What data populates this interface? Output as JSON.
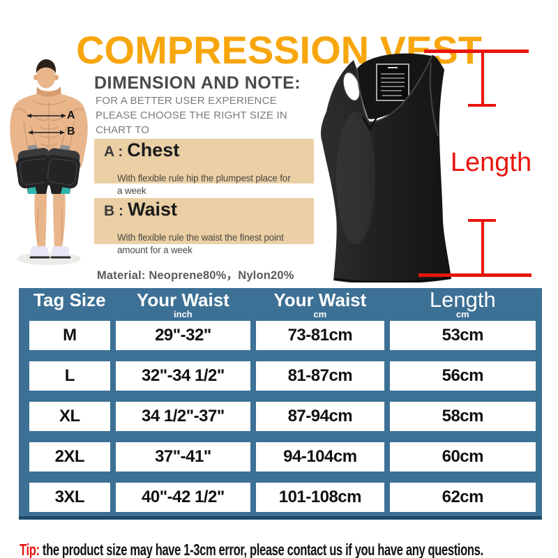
{
  "colors": {
    "accent-orange": "#f7a60d",
    "accent-red": "#e8150e",
    "tan": "#ebcfa5",
    "table-blue": "#3d7095",
    "table-blue-dark": "#1f4a68"
  },
  "title": "COMPRESSION VEST",
  "note": {
    "heading": "DIMENSION AND NOTE:",
    "intro": "FOR A BETTER USER EXPERIENCE\nPLEASE CHOOSE THE RIGHT SIZE IN CHART  TO\nBUY",
    "chest": {
      "prefix": "A :",
      "name": "Chest",
      "desc": "With flexible rule hip the plumpest place for\na week"
    },
    "waist": {
      "prefix": "B :",
      "name": "Waist",
      "desc": "With flexible rule the waist the finest point\namount for a week"
    },
    "material": "Material: Neoprene80%，Nylon20%"
  },
  "diagram": {
    "chest_label": "A",
    "waist_label": "B",
    "length_label": "Length"
  },
  "table": {
    "header": [
      {
        "label": "Tag Size",
        "sub": ""
      },
      {
        "label": "Your Waist",
        "sub": "inch"
      },
      {
        "label": "Your Waist",
        "sub": "cm"
      },
      {
        "label": "Length",
        "sub": "cm"
      }
    ],
    "rows": [
      [
        "M",
        "29\"-32\"",
        "73-81cm",
        "53cm"
      ],
      [
        "L",
        "32\"-34 1/2\"",
        "81-87cm",
        "56cm"
      ],
      [
        "XL",
        "34 1/2\"-37\"",
        "87-94cm",
        "58cm"
      ],
      [
        "2XL",
        "37\"-41\"",
        "94-104cm",
        "60cm"
      ],
      [
        "3XL",
        "40\"-42 1/2\"",
        "101-108cm",
        "62cm"
      ]
    ]
  },
  "tip": {
    "prefix": "Tip:",
    "text": "the product size may have 1-3cm error, please contact us if you have any questions."
  }
}
